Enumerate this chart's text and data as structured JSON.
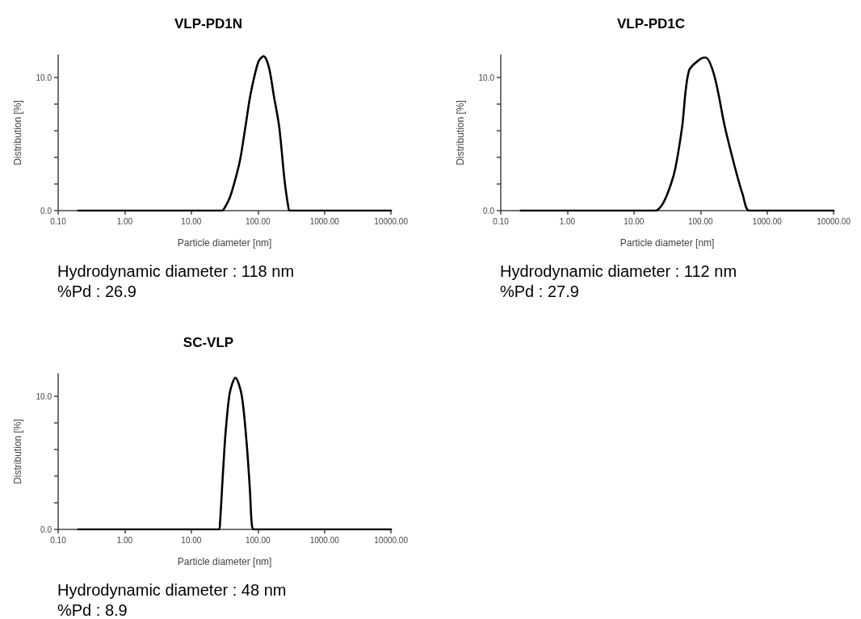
{
  "chart_data": [
    {
      "type": "line",
      "title": "VLP-PD1N",
      "xlabel": "Particle diameter [nm]",
      "ylabel": "Distribution [%]",
      "annotations": [
        "Hydrodynamic diameter : 118 nm",
        "%Pd : 26.9"
      ],
      "log": "x",
      "xlim": [
        0.1,
        10000
      ],
      "xticks": [
        {
          "value": 0.1,
          "label": "0.10"
        },
        {
          "value": 1,
          "label": "1.00"
        },
        {
          "value": 10,
          "label": "10.00"
        },
        {
          "value": 100,
          "label": "100.00"
        },
        {
          "value": 1000,
          "label": "1000.00"
        },
        {
          "value": 10000,
          "label": "10000.00"
        }
      ],
      "ylim": [
        0,
        11.7
      ],
      "yticks": [
        {
          "value": 0,
          "label": "0.0"
        },
        {
          "value": 2,
          "label": null
        },
        {
          "value": 4,
          "label": null
        },
        {
          "value": 6,
          "label": null
        },
        {
          "value": 8,
          "label": null
        },
        {
          "value": 10,
          "label": "10.0"
        }
      ],
      "grid": false,
      "marker": "none",
      "line_style": "solid",
      "series": [
        {
          "color": "#000000",
          "x": [
            0.2,
            10,
            29,
            32,
            38,
            45,
            54,
            65,
            78,
            102,
            122,
            146,
            174,
            209,
            250,
            285,
            302,
            1000,
            10000
          ],
          "values": [
            0,
            0,
            0,
            0.25,
            1.0,
            2.2,
            3.8,
            6.3,
            8.8,
            11.2,
            11.6,
            10.8,
            8.6,
            6.3,
            2.4,
            0.35,
            0,
            0,
            0
          ]
        }
      ]
    },
    {
      "type": "line",
      "title": "VLP-PD1C",
      "xlabel": "Particle diameter [nm]",
      "ylabel": "Distribution [%]",
      "annotations": [
        "Hydrodynamic diameter : 112 nm",
        "%Pd : 27.9"
      ],
      "log": "x",
      "xlim": [
        0.1,
        10000
      ],
      "xticks": [
        {
          "value": 0.1,
          "label": "0.10"
        },
        {
          "value": 1,
          "label": "1.00"
        },
        {
          "value": 10,
          "label": "10.00"
        },
        {
          "value": 100,
          "label": "100.00"
        },
        {
          "value": 1000,
          "label": "1000.00"
        },
        {
          "value": 10000,
          "label": "10000.00"
        }
      ],
      "ylim": [
        0,
        11.7
      ],
      "yticks": [
        {
          "value": 0,
          "label": "0.0"
        },
        {
          "value": 2,
          "label": null
        },
        {
          "value": 4,
          "label": null
        },
        {
          "value": 6,
          "label": null
        },
        {
          "value": 8,
          "label": null
        },
        {
          "value": 10,
          "label": "10.0"
        }
      ],
      "grid": false,
      "marker": "none",
      "line_style": "solid",
      "series": [
        {
          "color": "#000000",
          "x": [
            0.2,
            10,
            21,
            27.7,
            36,
            42,
            53,
            67,
            100,
            119,
            162,
            232,
            331,
            431,
            537,
            1000,
            10000
          ],
          "values": [
            0,
            0,
            0,
            0.6,
            2.0,
            3.2,
            6.3,
            10.5,
            11.4,
            11.5,
            10.1,
            6.3,
            3.2,
            1.2,
            0,
            0,
            0
          ]
        }
      ]
    },
    {
      "type": "line",
      "title": "SC-VLP",
      "xlabel": "Particle diameter [nm]",
      "ylabel": "Distribution [%]",
      "annotations": [
        "Hydrodynamic diameter : 48 nm",
        "%Pd : 8.9"
      ],
      "log": "x",
      "xlim": [
        0.1,
        10000
      ],
      "xticks": [
        {
          "value": 0.1,
          "label": "0.10"
        },
        {
          "value": 1,
          "label": "1.00"
        },
        {
          "value": 10,
          "label": "10.00"
        },
        {
          "value": 100,
          "label": "100.00"
        },
        {
          "value": 1000,
          "label": "1000.00"
        },
        {
          "value": 10000,
          "label": "10000.00"
        }
      ],
      "ylim": [
        0,
        11.7
      ],
      "yticks": [
        {
          "value": 0,
          "label": "0.0"
        },
        {
          "value": 2,
          "label": null
        },
        {
          "value": 4,
          "label": null
        },
        {
          "value": 6,
          "label": null
        },
        {
          "value": 8,
          "label": null
        },
        {
          "value": 10,
          "label": "10.0"
        }
      ],
      "grid": false,
      "marker": "none",
      "line_style": "solid",
      "series": [
        {
          "color": "#000000",
          "x": [
            0.2,
            10,
            26,
            27,
            30,
            33,
            38,
            46,
            57,
            68,
            76,
            81,
            87,
            1000,
            10000
          ],
          "values": [
            0,
            0,
            0,
            0.5,
            4.4,
            7.5,
            10.3,
            11.4,
            10.1,
            6.4,
            2.9,
            0.4,
            0,
            0,
            0
          ]
        }
      ]
    }
  ]
}
